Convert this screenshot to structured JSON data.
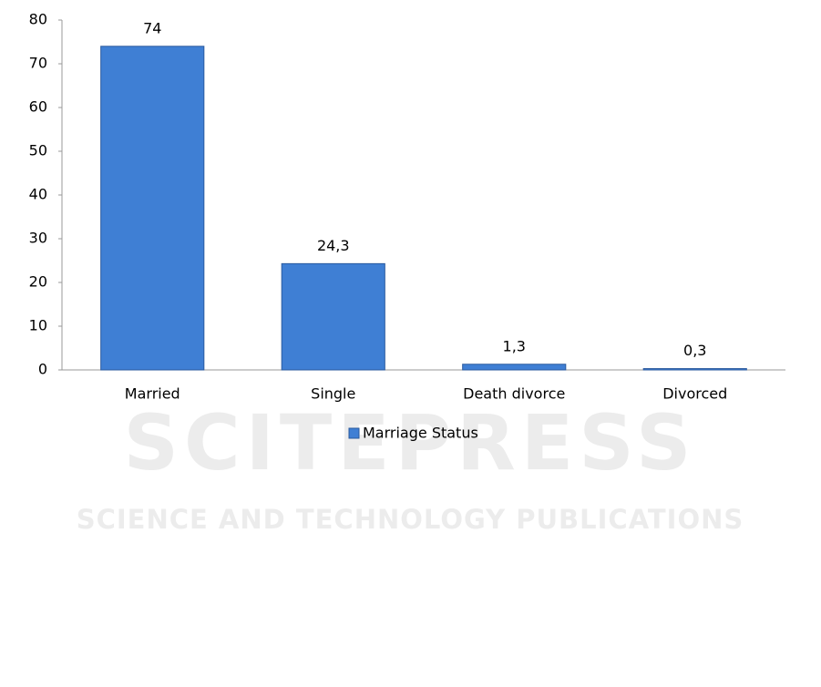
{
  "chart_data": {
    "type": "bar",
    "categories": [
      "Married",
      "Single",
      "Death divorce",
      "Divorced"
    ],
    "series": [
      {
        "name": "Marriage Status",
        "color": "#3f7fd4",
        "values": [
          74,
          24.3,
          1.3,
          0.3
        ],
        "value_labels": [
          "74",
          "24,3",
          "1,3",
          "0,3"
        ]
      }
    ],
    "ylim": [
      0,
      80
    ],
    "yticks": [
      0,
      10,
      20,
      30,
      40,
      50,
      60,
      70,
      80
    ],
    "grid": false,
    "legend": "bottom",
    "watermark": "SCITEPRESS",
    "watermark_subtitle": "SCIENCE AND TECHNOLOGY PUBLICATIONS"
  }
}
